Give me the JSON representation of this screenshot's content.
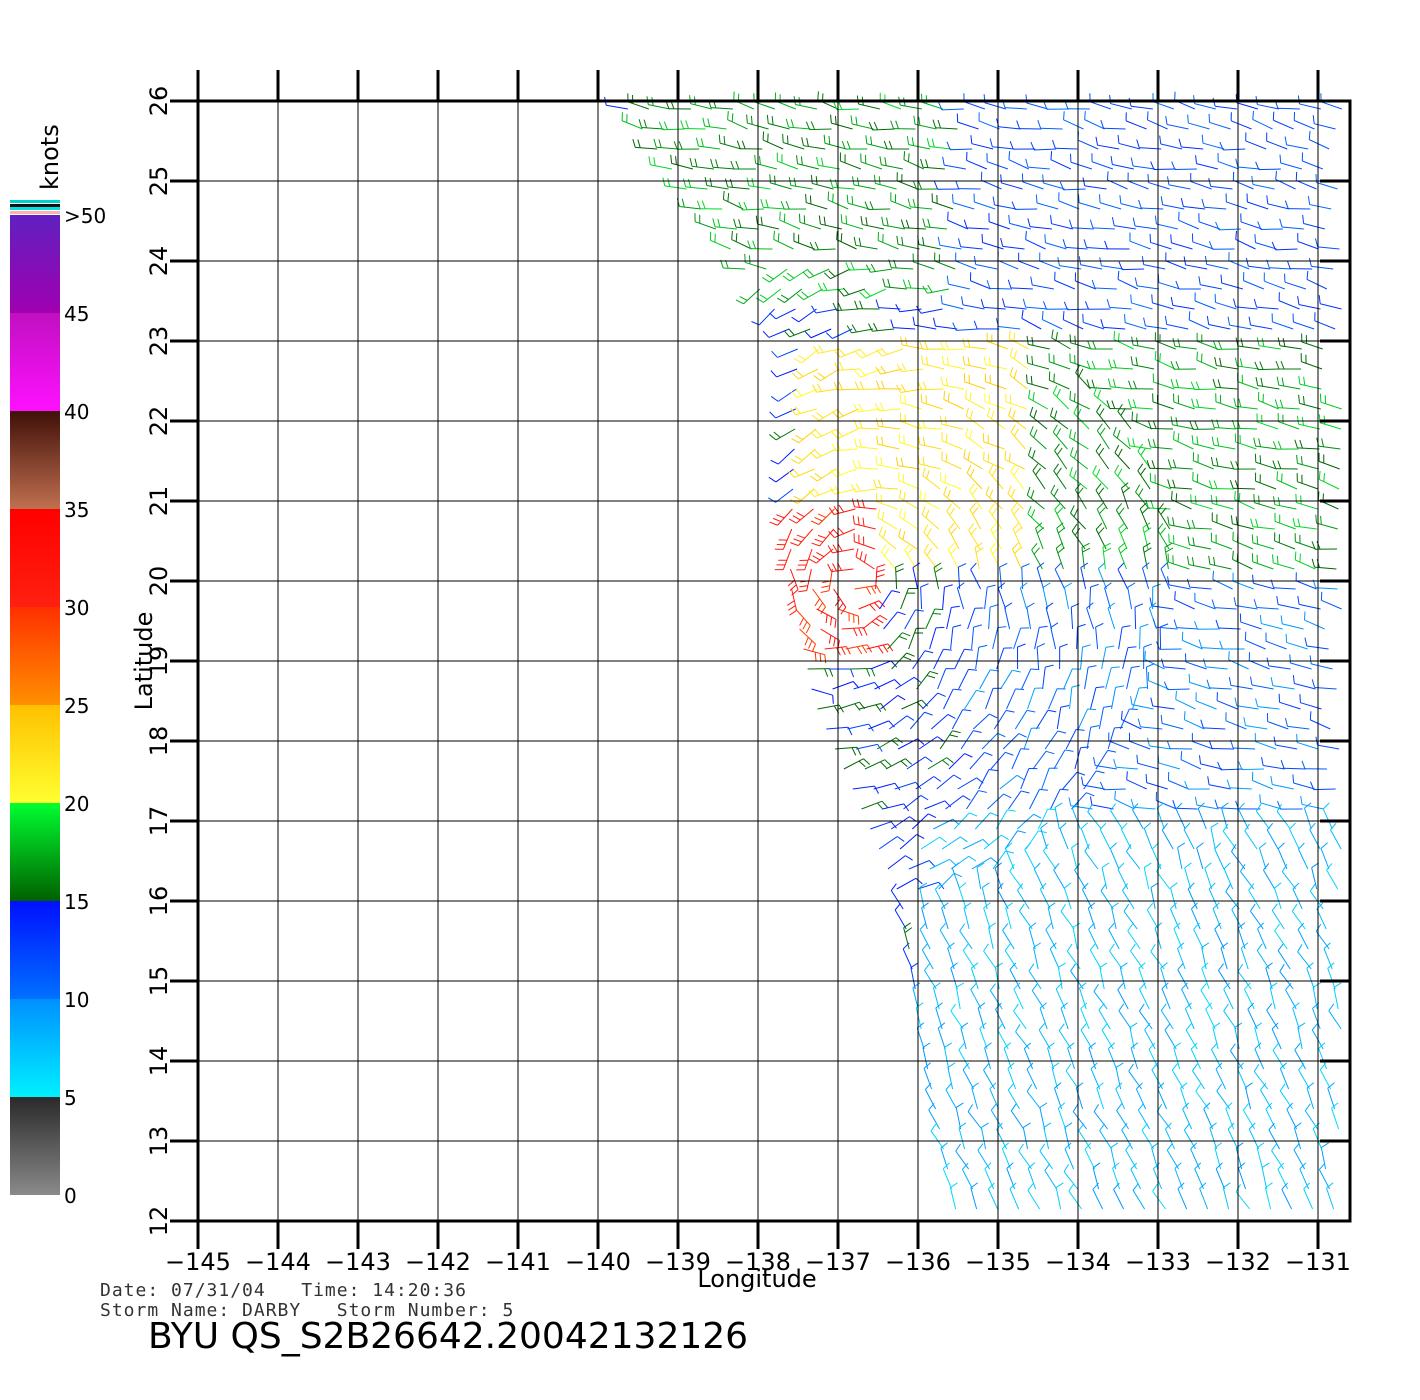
{
  "chart_data": {
    "type": "wind-barb map",
    "xlabel": "Longitude",
    "ylabel": "Latitude",
    "xlim": [
      -145,
      -130.5
    ],
    "ylim": [
      12,
      26
    ],
    "x_ticks": [
      "-145",
      "-144",
      "-143",
      "-142",
      "-141",
      "-140",
      "-139",
      "-138",
      "-137",
      "-136",
      "-135",
      "-134",
      "-133",
      "-132",
      "-131"
    ],
    "y_ticks": [
      "12",
      "13",
      "14",
      "15",
      "16",
      "17",
      "18",
      "19",
      "20",
      "21",
      "22",
      "23",
      "24",
      "25",
      "26"
    ],
    "grid": true,
    "legend": {
      "title": "knots",
      "placement": "left",
      "ticks": [
        "0",
        "5",
        "10",
        "15",
        "20",
        "25",
        "30",
        "35",
        "40",
        "45",
        ">50"
      ],
      "bands": [
        {
          "from": 0,
          "to": 5,
          "colors": [
            "#8a8a8a",
            "#2a2a2a"
          ]
        },
        {
          "from": 5,
          "to": 10,
          "colors": [
            "#00f0ff",
            "#0090ff"
          ]
        },
        {
          "from": 10,
          "to": 15,
          "colors": [
            "#0070ff",
            "#0010ff"
          ]
        },
        {
          "from": 15,
          "to": 20,
          "colors": [
            "#006000",
            "#00ff30"
          ]
        },
        {
          "from": 20,
          "to": 25,
          "colors": [
            "#ffff30",
            "#ffc000"
          ]
        },
        {
          "from": 25,
          "to": 30,
          "colors": [
            "#ff9000",
            "#ff3000"
          ]
        },
        {
          "from": 30,
          "to": 35,
          "colors": [
            "#ff2010",
            "#ff0000"
          ]
        },
        {
          "from": 35,
          "to": 40,
          "colors": [
            "#c07050",
            "#401008"
          ]
        },
        {
          "from": 40,
          "to": 45,
          "colors": [
            "#ff10ff",
            "#c010c0"
          ]
        },
        {
          "from": 45,
          "to": 50,
          "colors": [
            "#a000b0",
            "#6020c0"
          ]
        }
      ]
    },
    "swath": {
      "west_edge": [
        [
          -139.7,
          26
        ],
        [
          -137.5,
          23
        ],
        [
          -137.6,
          20
        ],
        [
          -137.3,
          18.5
        ],
        [
          -136.2,
          16
        ],
        [
          -135.9,
          14
        ],
        [
          -135.5,
          12
        ]
      ],
      "east_edge": -130.7
    },
    "regions": [
      {
        "name": "green-north",
        "lon": [
          -139.5,
          -135.5
        ],
        "lat": [
          23.5,
          26
        ],
        "speed_kt": 17
      },
      {
        "name": "blue-north",
        "lon": [
          -135.5,
          -130.7
        ],
        "lat": [
          23,
          26
        ],
        "speed_kt": 12
      },
      {
        "name": "yellow-band",
        "lon": [
          -137.5,
          -134.5
        ],
        "lat": [
          20,
          23
        ],
        "speed_kt": 22
      },
      {
        "name": "red-core",
        "lon": [
          -137.6,
          -136.5
        ],
        "lat": [
          19,
          21
        ],
        "speed_kt": 31
      },
      {
        "name": "green-mid",
        "lon": [
          -134.5,
          -130.7
        ],
        "lat": [
          20,
          23
        ],
        "speed_kt": 17
      },
      {
        "name": "blue-mid",
        "lon": [
          -135.5,
          -130.7
        ],
        "lat": [
          16,
          20
        ],
        "speed_kt": 11
      },
      {
        "name": "cyan-south",
        "lon": [
          -136,
          -130.7
        ],
        "lat": [
          12,
          17
        ],
        "speed_kt": 8
      }
    ],
    "center_estimate": {
      "lon": -136.8,
      "lat": 20.0
    }
  },
  "footer": {
    "date_line": "Date: 07/31/04   Time: 14:20:36",
    "storm_line": "Storm Name: DARBY   Storm Number: 5",
    "product_id": "BYU QS_S2B26642.20042132126"
  }
}
